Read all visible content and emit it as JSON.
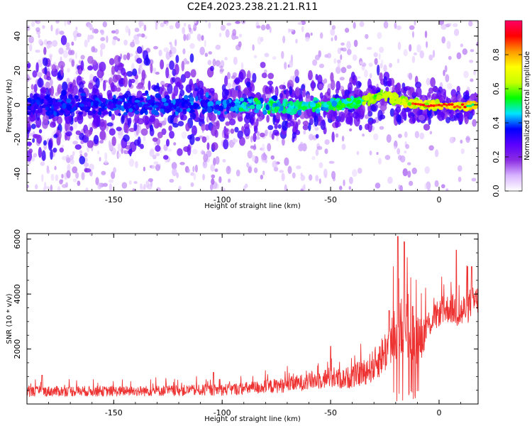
{
  "title": "C2E4.2023.238.21.21.R11",
  "chart_data": [
    {
      "type": "heatmap",
      "xlabel": "Height of straight line (km)",
      "ylabel": "Frequency (Hz)",
      "xlim": [
        -190,
        18
      ],
      "ylim": [
        -50,
        49
      ],
      "xticks": [
        -150,
        -100,
        -50,
        0
      ],
      "xtick_labels": [
        "-150",
        "-100",
        "-50",
        "0"
      ],
      "yticks": [
        -40,
        -20,
        0,
        20,
        40
      ],
      "ytick_labels": [
        "-40",
        "-20",
        "0",
        "20",
        "40"
      ],
      "colorbar": {
        "label": "Normalized spectral amplitude",
        "range": [
          0,
          1
        ],
        "ticks": [
          0.0,
          0.2,
          0.4,
          0.6,
          0.8
        ],
        "tick_labels": [
          "0.0",
          "0.2",
          "0.4",
          "0.6",
          "0.8"
        ],
        "colormap": [
          "#ffffff",
          "#d8b4ff",
          "#8a2be2",
          "#5a00ff",
          "#0000ff",
          "#00e5ff",
          "#00ff00",
          "#c8ff00",
          "#ffff00",
          "#ff9900",
          "#ff0000",
          "#ff0066"
        ]
      },
      "ridge": {
        "x": [
          -190,
          -150,
          -100,
          -70,
          -50,
          -40,
          -30,
          -25,
          -20,
          -10,
          0,
          10,
          18
        ],
        "freq": [
          -1,
          0,
          0,
          -1,
          0,
          1,
          4,
          6,
          3,
          0,
          0,
          -1,
          0
        ]
      },
      "grid": false
    },
    {
      "type": "line",
      "xlabel": "Height of straight line (km)",
      "ylabel": "SNR (10 * v/v)",
      "xlim": [
        -190,
        18
      ],
      "ylim": [
        0,
        6200
      ],
      "xticks": [
        -150,
        -100,
        -50,
        0
      ],
      "xtick_labels": [
        "-150",
        "-100",
        "-50",
        "0"
      ],
      "yticks": [
        2000,
        4000,
        6000
      ],
      "ytick_labels": [
        "2000",
        "4000",
        "6000"
      ],
      "color": "#ee3333",
      "series_envelope": {
        "x": [
          -190,
          -170,
          -150,
          -130,
          -110,
          -100,
          -90,
          -80,
          -70,
          -60,
          -55,
          -50,
          -45,
          -40,
          -35,
          -30,
          -25,
          -20,
          -17,
          -15,
          -12,
          -10,
          -8,
          -5,
          0,
          5,
          10,
          14,
          18
        ],
        "baseline": [
          450,
          470,
          460,
          480,
          500,
          520,
          560,
          620,
          700,
          820,
          900,
          960,
          900,
          1000,
          1150,
          1400,
          1900,
          2500,
          2800,
          2900,
          2600,
          2300,
          2400,
          2900,
          3300,
          3500,
          3300,
          3600,
          3800
        ],
        "spread": [
          300,
          320,
          300,
          320,
          330,
          350,
          380,
          420,
          450,
          520,
          600,
          650,
          600,
          700,
          800,
          1000,
          1300,
          1700,
          2000,
          2200,
          1800,
          1500,
          1200,
          900,
          800,
          900,
          1100,
          1000,
          900
        ],
        "peaks": [
          {
            "x": -183,
            "y": 1050
          },
          {
            "x": -104,
            "y": 1150
          },
          {
            "x": -50,
            "y": 2100
          },
          {
            "x": -23,
            "y": 3400
          },
          {
            "x": -21,
            "y": 5000
          },
          {
            "x": -19,
            "y": 6100
          },
          {
            "x": -16,
            "y": 5900
          },
          {
            "x": -13,
            "y": 4600
          },
          {
            "x": 8,
            "y": 5600
          },
          {
            "x": 15,
            "y": 5000
          }
        ]
      },
      "grid": false
    }
  ]
}
